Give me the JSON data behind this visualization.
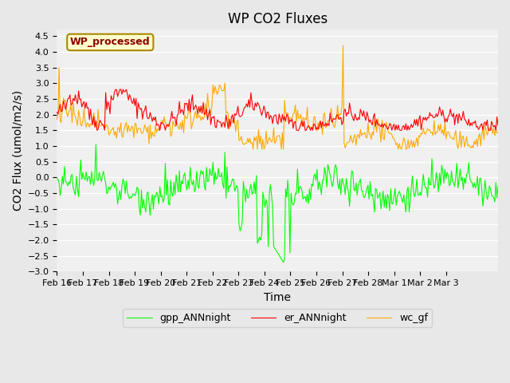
{
  "title": "WP CO2 Fluxes",
  "xlabel": "Time",
  "ylabel_display": "CO2 Flux (umol/m2/s)",
  "ylim": [
    -3.0,
    4.7
  ],
  "yticks": [
    -3.0,
    -2.5,
    -2.0,
    -1.5,
    -1.0,
    -0.5,
    0.0,
    0.5,
    1.0,
    1.5,
    2.0,
    2.5,
    3.0,
    3.5,
    4.0,
    4.5
  ],
  "bg_color": "#e8e8e8",
  "plot_bg_color": "#f0f0f0",
  "grid_color": "white",
  "line_colors": {
    "gpp": "#00ff00",
    "er": "#ff0000",
    "wc": "#ffaa00"
  },
  "legend_labels": [
    "gpp_ANNnight",
    "er_ANNnight",
    "wc_gf"
  ],
  "annotation_text": "WP_processed",
  "annotation_color": "#8b0000",
  "annotation_bg": "#ffffcc",
  "xtick_labels": [
    "Feb 16",
    "Feb 17",
    "Feb 18",
    "Feb 19",
    "Feb 20",
    "Feb 21",
    "Feb 22",
    "Feb 23",
    "Feb 24",
    "Feb 25",
    "Feb 26",
    "Feb 27",
    "Feb 28",
    "Mar 1",
    "Mar 2",
    "Mar 3"
  ],
  "title_fontsize": 12,
  "axis_label_fontsize": 10,
  "tick_fontsize": 8
}
